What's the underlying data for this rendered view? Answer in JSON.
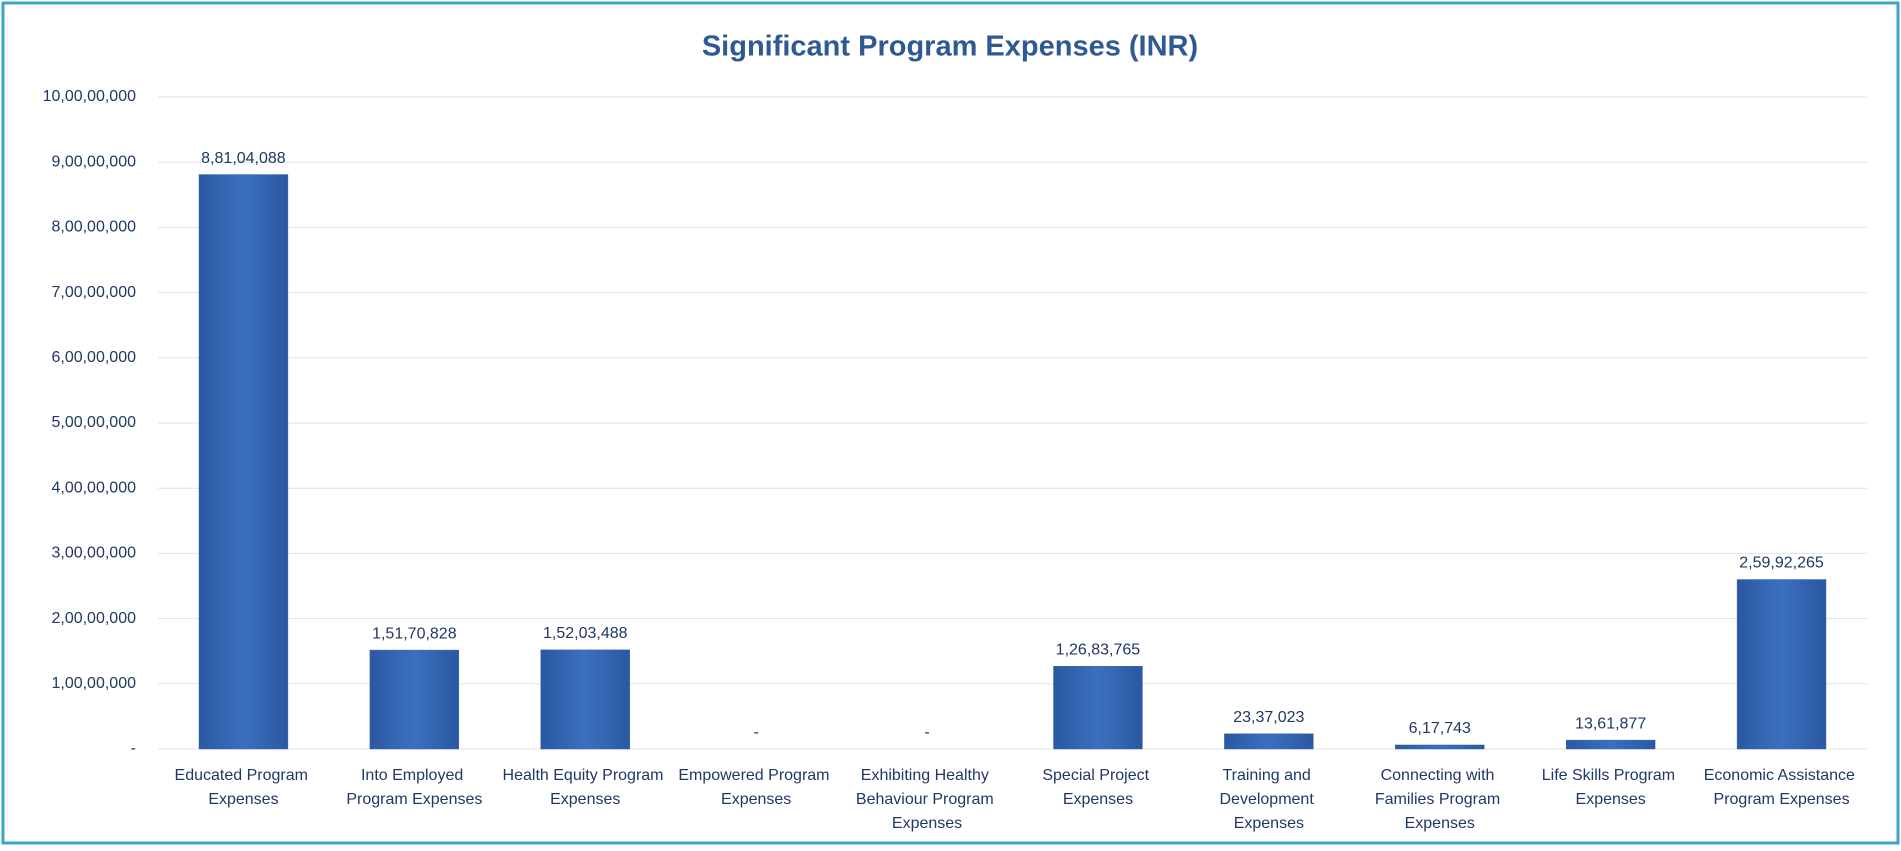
{
  "chart_data": {
    "type": "bar",
    "title": "Significant Program  Expenses (INR)",
    "categories": [
      "Educated Program Expenses",
      "Into Employed Program Expenses",
      "Health Equity Program Expenses",
      "Empowered Program Expenses",
      "Exhibiting Healthy Behaviour Program Expenses",
      "Special Project Expenses",
      "Training and Development Expenses",
      "Connecting with Families Program Expenses",
      "Life Skills Program Expenses",
      "Economic Assistance Program Expenses"
    ],
    "values": [
      88104088,
      15170828,
      15203488,
      0,
      0,
      12683765,
      2337023,
      617743,
      1361877,
      25992265
    ],
    "value_labels": [
      "8,81,04,088",
      "1,51,70,828",
      "1,52,03,488",
      "-",
      "-",
      "1,26,83,765",
      "23,37,023",
      "6,17,743",
      "13,61,877",
      "2,59,92,265"
    ],
    "color": "#3566b0",
    "ylim": [
      0,
      100000000
    ],
    "yticks": [
      {
        "value": 0,
        "label": "-"
      },
      {
        "value": 10000000,
        "label": "1,00,00,000"
      },
      {
        "value": 20000000,
        "label": "2,00,00,000"
      },
      {
        "value": 30000000,
        "label": "3,00,00,000"
      },
      {
        "value": 40000000,
        "label": "4,00,00,000"
      },
      {
        "value": 50000000,
        "label": "5,00,00,000"
      },
      {
        "value": 60000000,
        "label": "6,00,00,000"
      },
      {
        "value": 70000000,
        "label": "7,00,00,000"
      },
      {
        "value": 80000000,
        "label": "8,00,00,000"
      },
      {
        "value": 90000000,
        "label": "9,00,00,000"
      },
      {
        "value": 100000000,
        "label": "10,00,00,000"
      }
    ],
    "grid": true
  }
}
